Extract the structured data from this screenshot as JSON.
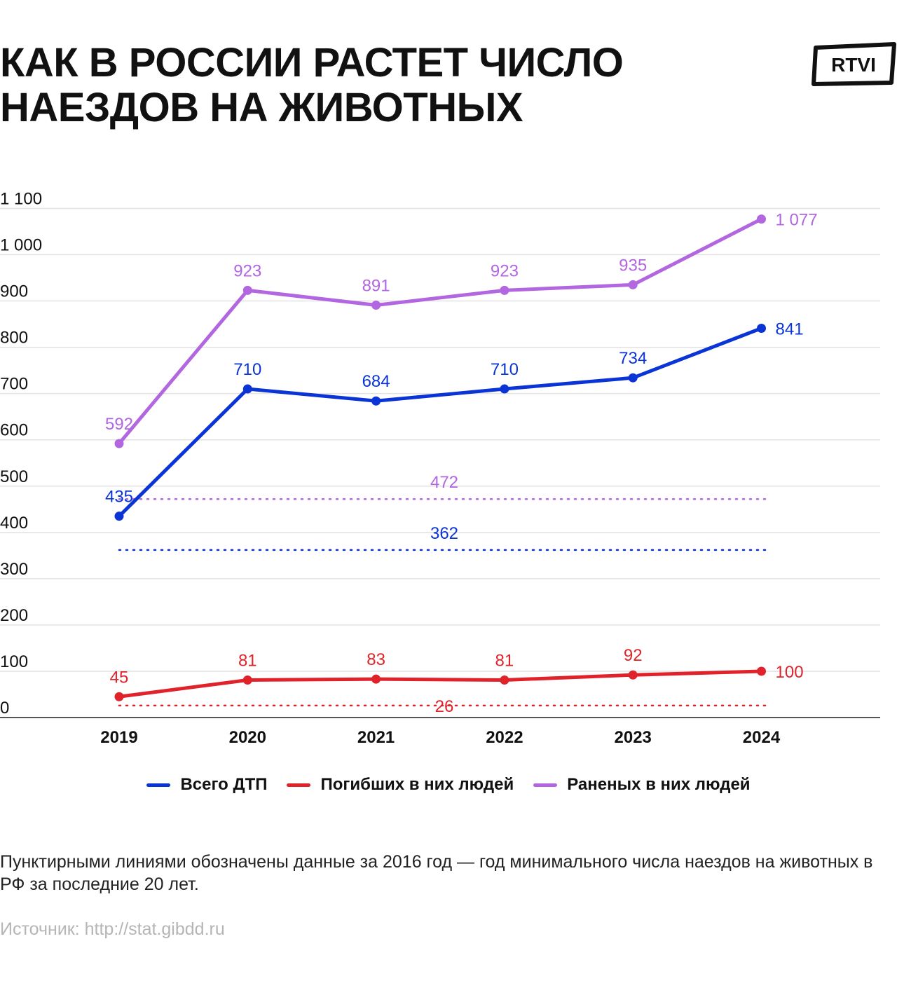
{
  "title": [
    "КАК В РОССИИ РАСТЕТ ЧИСЛО",
    "НАЕЗДОВ НА ЖИВОТНЫХ"
  ],
  "logo": {
    "text": "RTVI"
  },
  "colors": {
    "blue": "#0a34d6",
    "red": "#e0232b",
    "purple": "#b266e0",
    "grid": "#e2e2e2",
    "axis": "#555555",
    "text": "#111111"
  },
  "chart_data": {
    "type": "line",
    "categories": [
      "2019",
      "2020",
      "2021",
      "2022",
      "2023",
      "2024"
    ],
    "ylim": [
      0,
      1100
    ],
    "yticks": [
      0,
      100,
      200,
      300,
      400,
      500,
      600,
      700,
      800,
      900,
      1000,
      1100
    ],
    "ytick_labels": [
      "0",
      "100",
      "200",
      "300",
      "400",
      "500",
      "600",
      "700",
      "800",
      "900",
      "1 000",
      "1 100"
    ],
    "series": [
      {
        "name": "Всего ДТП",
        "color": "#0a34d6",
        "values": [
          435,
          710,
          684,
          710,
          734,
          841
        ],
        "labels": [
          "435",
          "710",
          "684",
          "710",
          "734",
          "841"
        ]
      },
      {
        "name": "Погибших в них людей",
        "color": "#e0232b",
        "values": [
          45,
          81,
          83,
          81,
          92,
          100
        ],
        "labels": [
          "45",
          "81",
          "83",
          "81",
          "92",
          "100"
        ]
      },
      {
        "name": "Раненых в них людей",
        "color": "#b266e0",
        "values": [
          592,
          923,
          891,
          923,
          935,
          1077
        ],
        "labels": [
          "592",
          "923",
          "891",
          "923",
          "935",
          "1 077"
        ]
      }
    ],
    "reference_lines": [
      {
        "color": "#b266e0",
        "value": 472,
        "label": "472"
      },
      {
        "color": "#0a34d6",
        "value": 362,
        "label": "362"
      },
      {
        "color": "#e0232b",
        "value": 26,
        "label": "26"
      }
    ],
    "grid": true,
    "legend_position": "bottom"
  },
  "note": "Пунктирными линиями обозначены данные за 2016 год — год минимального числа наездов на животных в РФ за последние 20 лет.",
  "source": "Источник: http://stat.gibdd.ru"
}
